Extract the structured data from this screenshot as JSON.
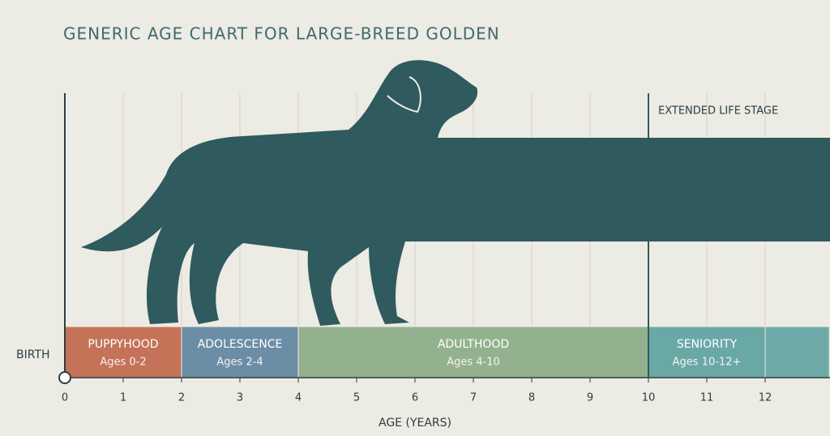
{
  "chart_data": {
    "type": "timeline",
    "title": "GENERIC AGE CHART FOR LARGE-BREED GOLDEN",
    "x_label": "AGE (YEARS)",
    "xlim": [
      0,
      13.1
    ],
    "xticks": [
      0,
      1,
      2,
      3,
      4,
      5,
      6,
      7,
      8,
      9,
      10,
      11,
      12
    ],
    "grid": true,
    "stages": [
      {
        "name": "PUPPYHOOD",
        "label": "Ages 0-2",
        "start": 0,
        "end": 2,
        "color": "#c47359"
      },
      {
        "name": "ADOLESCENCE",
        "label": "Ages 2-4",
        "start": 2,
        "end": 4,
        "color": "#6b8ea6"
      },
      {
        "name": "ADULTHOOD",
        "label": "Ages 4-10",
        "start": 4,
        "end": 10,
        "color": "#94b18f"
      },
      {
        "name": "SENIORITY",
        "label": "Ages 10-12+",
        "start": 10,
        "end": 12,
        "color": "#6aa8a6"
      },
      {
        "name": null,
        "label": null,
        "start": 12,
        "end": 13.1,
        "color": "#6eaaa7"
      }
    ],
    "birth": {
      "text": "BIRTH",
      "x": 0
    },
    "extended": {
      "text": "EXTENDED LIFE STAGE",
      "x": 10
    }
  }
}
